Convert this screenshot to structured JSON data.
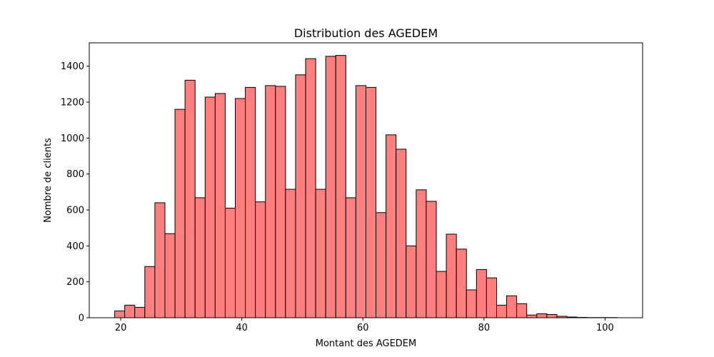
{
  "chart_data": {
    "type": "bar",
    "title": "Distribution des AGEDEM",
    "xlabel": "Montant des AGEDEM",
    "ylabel": "Nombre de clients",
    "xlim": [
      14.8,
      106.2
    ],
    "ylim": [
      0,
      1530
    ],
    "xticks": [
      20,
      40,
      60,
      80,
      100
    ],
    "yticks": [
      0,
      200,
      400,
      600,
      800,
      1000,
      1200,
      1400
    ],
    "grid": false,
    "bar_color": "#ff7f7f",
    "edge_color": "#000000",
    "bin_width": 1.66,
    "x": [
      19.83,
      21.49,
      23.15,
      24.81,
      26.47,
      28.13,
      29.79,
      31.45,
      33.11,
      34.77,
      36.43,
      38.09,
      39.75,
      41.41,
      43.07,
      44.73,
      46.39,
      48.05,
      49.71,
      51.37,
      53.03,
      54.69,
      56.35,
      58.01,
      59.67,
      61.33,
      62.99,
      64.65,
      66.31,
      67.97,
      69.63,
      71.29,
      72.95,
      74.61,
      76.27,
      77.93,
      79.59,
      81.25,
      82.91,
      84.57,
      86.23,
      87.89,
      89.55,
      91.21,
      92.87,
      94.53,
      96.19,
      97.85,
      99.51,
      101.17
    ],
    "values": [
      38,
      70,
      58,
      285,
      640,
      468,
      1160,
      1322,
      668,
      1228,
      1248,
      610,
      1220,
      1282,
      645,
      1292,
      1288,
      715,
      1352,
      1442,
      715,
      1455,
      1460,
      668,
      1292,
      1282,
      585,
      1018,
      938,
      400,
      712,
      648,
      258,
      465,
      382,
      155,
      268,
      222,
      70,
      122,
      78,
      15,
      22,
      18,
      8,
      4,
      2,
      1,
      1,
      1
    ]
  }
}
